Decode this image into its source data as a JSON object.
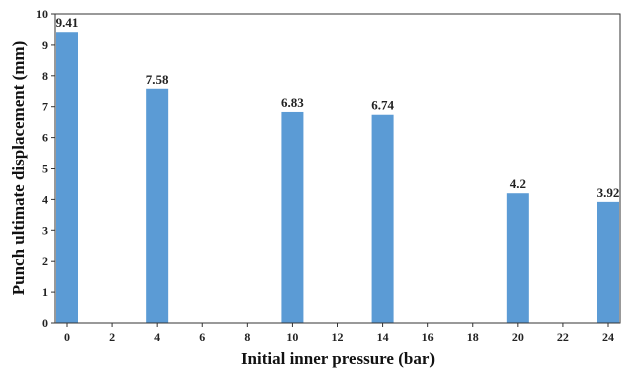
{
  "chart_data": {
    "type": "bar",
    "xlabel": "Initial inner pressure (bar)",
    "ylabel": "Punch ultimate displacement (mm)",
    "x_ticks": [
      "0",
      "2",
      "4",
      "6",
      "8",
      "10",
      "12",
      "14",
      "16",
      "18",
      "20",
      "22",
      "24"
    ],
    "y_ticks": [
      "0",
      "1",
      "2",
      "3",
      "4",
      "5",
      "6",
      "7",
      "8",
      "9",
      "10"
    ],
    "ylim": [
      0,
      10
    ],
    "categories": [
      "0",
      "4",
      "10",
      "14",
      "20",
      "24"
    ],
    "values": [
      9.41,
      7.58,
      6.83,
      6.74,
      4.2,
      3.92
    ],
    "data_labels": [
      "9.41",
      "7.58",
      "6.83",
      "6.74",
      "4.2",
      "3.92"
    ],
    "bar_color": "#5b9bd5",
    "grid": false,
    "legend": "none"
  }
}
